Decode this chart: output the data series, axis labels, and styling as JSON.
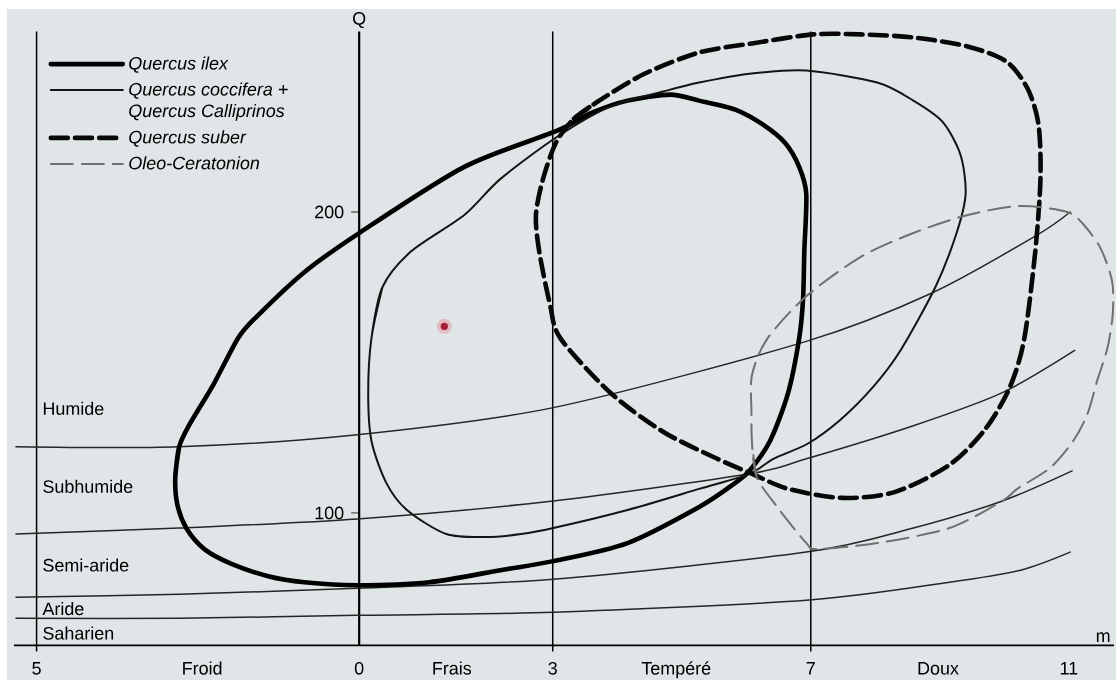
{
  "chart_data": {
    "type": "line",
    "xlabel": "m",
    "ylabel": "Q",
    "xlim": [
      -5.35,
      11.7
    ],
    "ylim": [
      56,
      260
    ],
    "xticks": [
      {
        "value": -5,
        "label": "5"
      },
      0,
      3,
      7,
      11
    ],
    "yticks": [
      100,
      200
    ],
    "legend": "top left",
    "marker": "none",
    "line_style": "solid",
    "series": [
      {
        "name": "Quercus ilex",
        "color": "#000000",
        "x": [
          -2.85,
          -2.79,
          -2.64,
          -2.25,
          -1.88,
          -1.6,
          -0.85,
          0,
          1.63,
          3.07,
          3.61,
          4.16,
          4.82,
          5.27,
          5.83,
          6.26,
          6.6,
          6.82,
          6.93,
          6.9,
          6.88,
          6.82,
          6.65,
          6.37,
          6.05,
          5.83,
          5.27,
          4.16,
          3.01,
          2.19,
          1.09,
          -0.03,
          -0.85,
          -1.41,
          -1.97,
          -2.4,
          -2.68,
          -2.82,
          -2.85,
          -2.79
        ],
        "values": [
          112,
          122,
          129,
          143,
          158,
          165,
          180,
          193,
          215,
          227,
          233,
          237,
          239,
          237,
          234,
          229,
          223,
          215,
          206,
          187,
          171,
          158,
          140,
          124,
          114,
          110,
          102,
          90,
          84,
          81,
          77,
          76,
          77,
          79,
          83,
          88,
          95,
          103,
          112,
          122
        ]
      },
      {
        "name": "Quercus coccifera + Quercus Calliprinos",
        "color": "#141414",
        "x": [
          0.19,
          0.36,
          0.81,
          1.63,
          2.19,
          3.07,
          3.89,
          4.71,
          5.27,
          6.09,
          6.93,
          8.03,
          8.59,
          9.04,
          9.32,
          9.4,
          9.26,
          8.93,
          8.39,
          7.97,
          7.46,
          6.95,
          6.42,
          6.05,
          5.27,
          4.16,
          3.01,
          2.51,
          1.97,
          1.35,
          0.74,
          0.42,
          0.19,
          0.14,
          0.19,
          0.36
        ],
        "values": [
          158,
          175,
          187,
          199,
          211,
          225,
          235,
          240,
          243,
          246,
          247,
          243,
          237,
          230,
          219,
          206,
          193,
          175,
          154,
          142,
          131,
          123,
          118,
          113,
          108,
          101,
          95,
          93,
          92,
          93,
          101,
          110,
          124,
          140,
          158,
          175
        ]
      },
      {
        "name": "Quercus suber",
        "color": "#080808",
        "line_style": "dashed",
        "x": [
          3.33,
          3.72,
          4.43,
          5.27,
          6.09,
          7.04,
          7.77,
          8.59,
          9.43,
          10.03,
          10.36,
          10.53,
          10.56,
          10.48,
          10.31,
          10.09,
          9.71,
          9.15,
          8.31,
          7.49,
          6.65,
          6.09,
          5.55,
          4.71,
          3.89,
          3.12,
          2.96,
          2.79,
          2.74,
          2.85,
          3.05,
          3.33,
          3.72
        ],
        "values": [
          231,
          237,
          246,
          253,
          256,
          259,
          259,
          258,
          255,
          250,
          241,
          229,
          211,
          187,
          158,
          142,
          128,
          116,
          107,
          105,
          108,
          113,
          118,
          127,
          140,
          158,
          169,
          187,
          199,
          211,
          223,
          231,
          237
        ]
      },
      {
        "name": "Oleo-Ceratonion",
        "color": "#707070",
        "line_style": "dashed",
        "x": [
          6.16,
          6.09,
          6.08,
          6.09,
          6.33,
          6.93,
          7.77,
          8.59,
          9.43,
          10.25,
          10.97,
          11.22,
          11.49,
          11.67,
          11.68,
          11.6,
          11.44,
          11.29,
          11.07,
          10.71,
          10.2,
          9.97,
          9.15,
          8.03,
          7.1,
          6.93,
          6.48,
          6.16,
          6.09
        ],
        "values": [
          112,
          123,
          134,
          146,
          158,
          172,
          185,
          193,
          199,
          202,
          200,
          196,
          188,
          177,
          166,
          155,
          144,
          133,
          124,
          115,
          108,
          104,
          95,
          90,
          88,
          90,
          102,
          112,
          123
        ]
      },
      {
        "color": "#262626",
        "x": [
          -5.32,
          -2.79,
          -0.03,
          3.01,
          6.93,
          8.87,
          10.48,
          11.02
        ],
        "values": [
          122,
          122,
          126,
          135,
          157,
          173,
          192,
          200
        ]
      },
      {
        "color": "#262626",
        "x": [
          -5.32,
          -2.79,
          -0.03,
          3.01,
          6.05,
          6.93,
          8.59,
          9.97,
          11.09
        ],
        "values": [
          93,
          95,
          98,
          104,
          113,
          118,
          129,
          140,
          154
        ]
      },
      {
        "color": "#262626",
        "x": [
          -5.32,
          -2.79,
          -0.03,
          3.01,
          6.93,
          8.59,
          9.97,
          11.05
        ],
        "values": [
          72,
          73,
          75,
          78,
          87,
          95,
          104,
          114
        ]
      },
      {
        "color": "#262626",
        "x": [
          -5.32,
          -2.79,
          -0.03,
          3.01,
          6.93,
          9.15,
          10.25,
          11.02
        ],
        "values": [
          65,
          65,
          66,
          67,
          71,
          77,
          81,
          87
        ]
      },
      {
        "type": "scatter",
        "marker": "circle",
        "color": "#a31f38",
        "x": [
          1.32
        ],
        "values": [
          162
        ]
      }
    ],
    "ref_lines": [
      {
        "axis": "x",
        "value": -5
      },
      {
        "axis": "x",
        "value": 3
      },
      {
        "axis": "x",
        "value": 7
      }
    ],
    "annotations": [
      "Humide",
      "Subhumide",
      "Semi-aride",
      "Aride",
      "Saharien",
      "Froid",
      "Frais",
      "Tempéré",
      "Doux"
    ]
  }
}
